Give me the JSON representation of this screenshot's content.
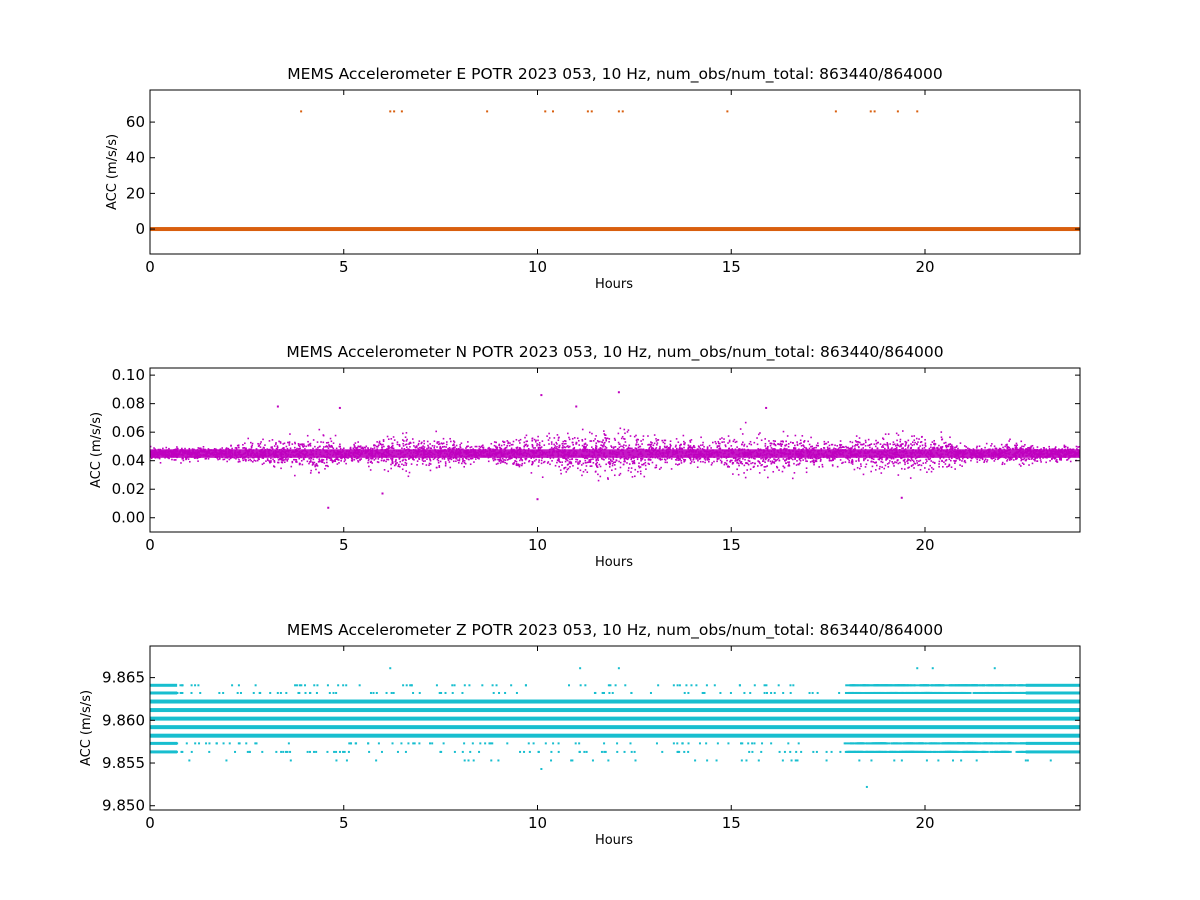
{
  "figure": {
    "background": "#ffffff"
  },
  "chart_data": [
    {
      "type": "scatter",
      "title": "MEMS Accelerometer E POTR 2023 053, 10 Hz, num_obs/num_total: 863440/864000",
      "xlabel": "Hours",
      "ylabel": "ACC (m/s/s)",
      "xlim": [
        0,
        24
      ],
      "ylim": [
        -14,
        78
      ],
      "xticks": [
        0,
        5,
        10,
        15,
        20
      ],
      "yticks": [
        0,
        20,
        40,
        60
      ],
      "color": "#d95f0e",
      "baseline": 0,
      "outliers": [
        {
          "x": 3.9,
          "y": 66
        },
        {
          "x": 6.2,
          "y": 66
        },
        {
          "x": 6.3,
          "y": 66
        },
        {
          "x": 6.5,
          "y": 66
        },
        {
          "x": 8.7,
          "y": 66
        },
        {
          "x": 10.2,
          "y": 66
        },
        {
          "x": 10.4,
          "y": 66
        },
        {
          "x": 11.3,
          "y": 66
        },
        {
          "x": 11.4,
          "y": 66
        },
        {
          "x": 12.1,
          "y": 66
        },
        {
          "x": 12.2,
          "y": 66
        },
        {
          "x": 14.9,
          "y": 66
        },
        {
          "x": 17.7,
          "y": 66
        },
        {
          "x": 18.6,
          "y": 66
        },
        {
          "x": 18.7,
          "y": 66
        },
        {
          "x": 19.3,
          "y": 66
        },
        {
          "x": 19.8,
          "y": 66
        }
      ]
    },
    {
      "type": "scatter",
      "title": "MEMS Accelerometer N POTR 2023 053, 10 Hz, num_obs/num_total: 863440/864000",
      "xlabel": "Hours",
      "ylabel": "ACC (m/s/s)",
      "xlim": [
        0,
        24
      ],
      "ylim": [
        -0.01,
        0.105
      ],
      "xticks": [
        0,
        5,
        10,
        15,
        20
      ],
      "yticks": [
        0.0,
        0.02,
        0.04,
        0.06,
        0.08,
        0.1
      ],
      "ytick_labels": [
        "0.00",
        "0.02",
        "0.04",
        "0.06",
        "0.08",
        "0.10"
      ],
      "color": "#bf00bf",
      "mean": 0.045,
      "noise_envelope": [
        {
          "x": 0,
          "spread": 0.004
        },
        {
          "x": 2,
          "spread": 0.005
        },
        {
          "x": 3,
          "spread": 0.01
        },
        {
          "x": 4.5,
          "spread": 0.012
        },
        {
          "x": 5.5,
          "spread": 0.006
        },
        {
          "x": 6.5,
          "spread": 0.014
        },
        {
          "x": 7.5,
          "spread": 0.01
        },
        {
          "x": 8.5,
          "spread": 0.006
        },
        {
          "x": 10,
          "spread": 0.012
        },
        {
          "x": 11,
          "spread": 0.014
        },
        {
          "x": 12,
          "spread": 0.016
        },
        {
          "x": 13.5,
          "spread": 0.01
        },
        {
          "x": 14.5,
          "spread": 0.006
        },
        {
          "x": 15,
          "spread": 0.013
        },
        {
          "x": 16.5,
          "spread": 0.012
        },
        {
          "x": 17.5,
          "spread": 0.008
        },
        {
          "x": 19,
          "spread": 0.013
        },
        {
          "x": 20.5,
          "spread": 0.012
        },
        {
          "x": 21.3,
          "spread": 0.004
        },
        {
          "x": 22,
          "spread": 0.008
        },
        {
          "x": 24,
          "spread": 0.005
        }
      ],
      "extremes": [
        {
          "x": 4.6,
          "y": 0.007
        },
        {
          "x": 10.1,
          "y": 0.086
        },
        {
          "x": 12.1,
          "y": 0.088
        },
        {
          "x": 3.3,
          "y": 0.078
        },
        {
          "x": 4.9,
          "y": 0.077
        },
        {
          "x": 11.0,
          "y": 0.078
        },
        {
          "x": 15.9,
          "y": 0.077
        },
        {
          "x": 19.4,
          "y": 0.014
        },
        {
          "x": 6.0,
          "y": 0.017
        },
        {
          "x": 10.0,
          "y": 0.013
        }
      ]
    },
    {
      "type": "scatter",
      "title": "MEMS Accelerometer Z POTR 2023 053, 10 Hz, num_obs/num_total: 863440/864000",
      "xlabel": "Hours",
      "ylabel": "ACC (m/s/s)",
      "xlim": [
        0,
        24
      ],
      "ylim": [
        9.8495,
        9.8687
      ],
      "xticks": [
        0,
        5,
        10,
        15,
        20
      ],
      "yticks": [
        9.85,
        9.855,
        9.86,
        9.865
      ],
      "ytick_labels": [
        "9.850",
        "9.855",
        "9.860",
        "9.865"
      ],
      "color": "#17becf",
      "quantized_levels": [
        {
          "y": 9.8641,
          "density": "sparse"
        },
        {
          "y": 9.8632,
          "density": "sparse"
        },
        {
          "y": 9.8622,
          "density": "dense"
        },
        {
          "y": 9.8612,
          "density": "dense"
        },
        {
          "y": 9.8602,
          "density": "dense"
        },
        {
          "y": 9.8592,
          "density": "dense"
        },
        {
          "y": 9.8582,
          "density": "dense"
        },
        {
          "y": 9.8573,
          "density": "sparse"
        },
        {
          "y": 9.8563,
          "density": "sparse"
        },
        {
          "y": 9.8553,
          "density": "rare"
        }
      ],
      "extremes": [
        {
          "x": 6.2,
          "y": 9.8661
        },
        {
          "x": 11.1,
          "y": 9.8661
        },
        {
          "x": 12.1,
          "y": 9.8661
        },
        {
          "x": 19.8,
          "y": 9.8661
        },
        {
          "x": 20.2,
          "y": 9.8661
        },
        {
          "x": 21.8,
          "y": 9.8661
        },
        {
          "x": 10.1,
          "y": 9.8543
        },
        {
          "x": 18.5,
          "y": 9.8522
        }
      ]
    }
  ]
}
